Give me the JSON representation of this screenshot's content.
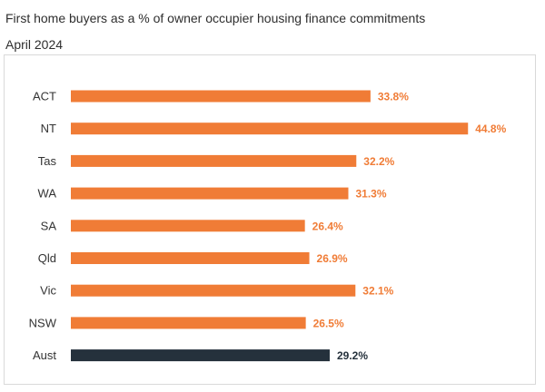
{
  "chart_data": {
    "type": "bar",
    "orientation": "horizontal",
    "title": "First home buyers as a % of owner occupier housing finance commitments April 2024",
    "categories": [
      "ACT",
      "NT",
      "Tas",
      "WA",
      "SA",
      "Qld",
      "Vic",
      "NSW",
      "Aust"
    ],
    "values": [
      33.8,
      44.8,
      32.2,
      31.3,
      26.4,
      26.9,
      32.1,
      26.5,
      29.2
    ],
    "labels": [
      "33.8%",
      "44.8%",
      "32.2%",
      "31.3%",
      "26.4%",
      "26.9%",
      "32.1%",
      "26.5%",
      "29.2%"
    ],
    "bar_colors": [
      "#f07c36",
      "#f07c36",
      "#f07c36",
      "#f07c36",
      "#f07c36",
      "#f07c36",
      "#f07c36",
      "#f07c36",
      "#25313c"
    ],
    "label_colors": [
      "#f07c36",
      "#f07c36",
      "#f07c36",
      "#f07c36",
      "#f07c36",
      "#f07c36",
      "#f07c36",
      "#f07c36",
      "#25313c"
    ],
    "xlim": [
      0,
      45
    ],
    "grid": false,
    "legend": "none",
    "xlabel": "",
    "ylabel": ""
  }
}
